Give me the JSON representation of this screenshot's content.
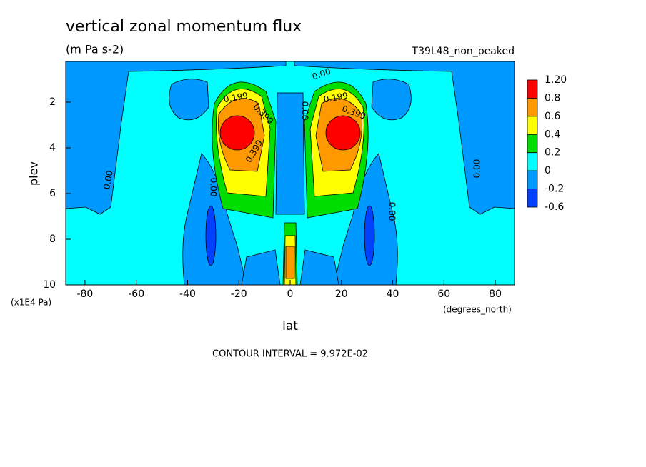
{
  "chart_data": {
    "type": "contour",
    "title": "vertical zonal momentum flux",
    "subtitle": "(m Pa s-2)",
    "dataset": "T39L48_non_peaked",
    "xlabel": "lat",
    "xunits": "(degrees_north)",
    "ylabel": "plev",
    "yunits": "(x1E4 Pa)",
    "footnote": "CONTOUR INTERVAL = 9.972E-02",
    "xlim": [
      -87.5,
      87.5
    ],
    "xticks": [
      -80,
      -60,
      -40,
      -20,
      0,
      20,
      40,
      60,
      80
    ],
    "ylim": [
      10,
      0.22
    ],
    "yticks": [
      2,
      4,
      6,
      8,
      10
    ],
    "grid": false,
    "colorbar": {
      "levels": [
        {
          "value": 1.2,
          "label": "1.20"
        },
        0.8,
        0.6,
        0.4,
        0.2,
        0,
        -0.2,
        -0.6
      ],
      "colors": [
        "#ff0000",
        "#ff9900",
        "#ffff00",
        "#00dd00",
        "#00ffff",
        "#0099ff",
        "#0040ff"
      ]
    },
    "contour_labels": [
      "0.00",
      "0.199",
      "0.399",
      "0.399",
      "0.199",
      "0.399",
      "0.00",
      "0.00",
      "0.00",
      "0.00",
      "0.00"
    ]
  }
}
